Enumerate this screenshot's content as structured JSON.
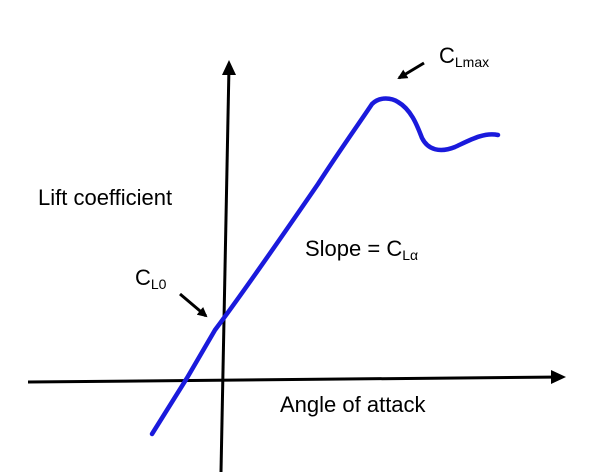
{
  "labels": {
    "y_axis": "Lift coefficient",
    "x_axis": "Angle of attack",
    "clmax_base": "C",
    "clmax_sub": "Lmax",
    "slope_prefix": "Slope = C",
    "slope_sub": "Lα",
    "cl0_base": "C",
    "cl0_sub": "L0"
  },
  "colors": {
    "curve": "#1a1adc",
    "axes": "#000000",
    "text": "#000000",
    "background": "#ffffff"
  },
  "chart_data": {
    "type": "line",
    "grid": false,
    "legend": "none",
    "xlabel": "Angle of attack",
    "ylabel": "Lift coefficient",
    "annotations": [
      "CLmax",
      "Slope = CLα",
      "CL0"
    ]
  }
}
